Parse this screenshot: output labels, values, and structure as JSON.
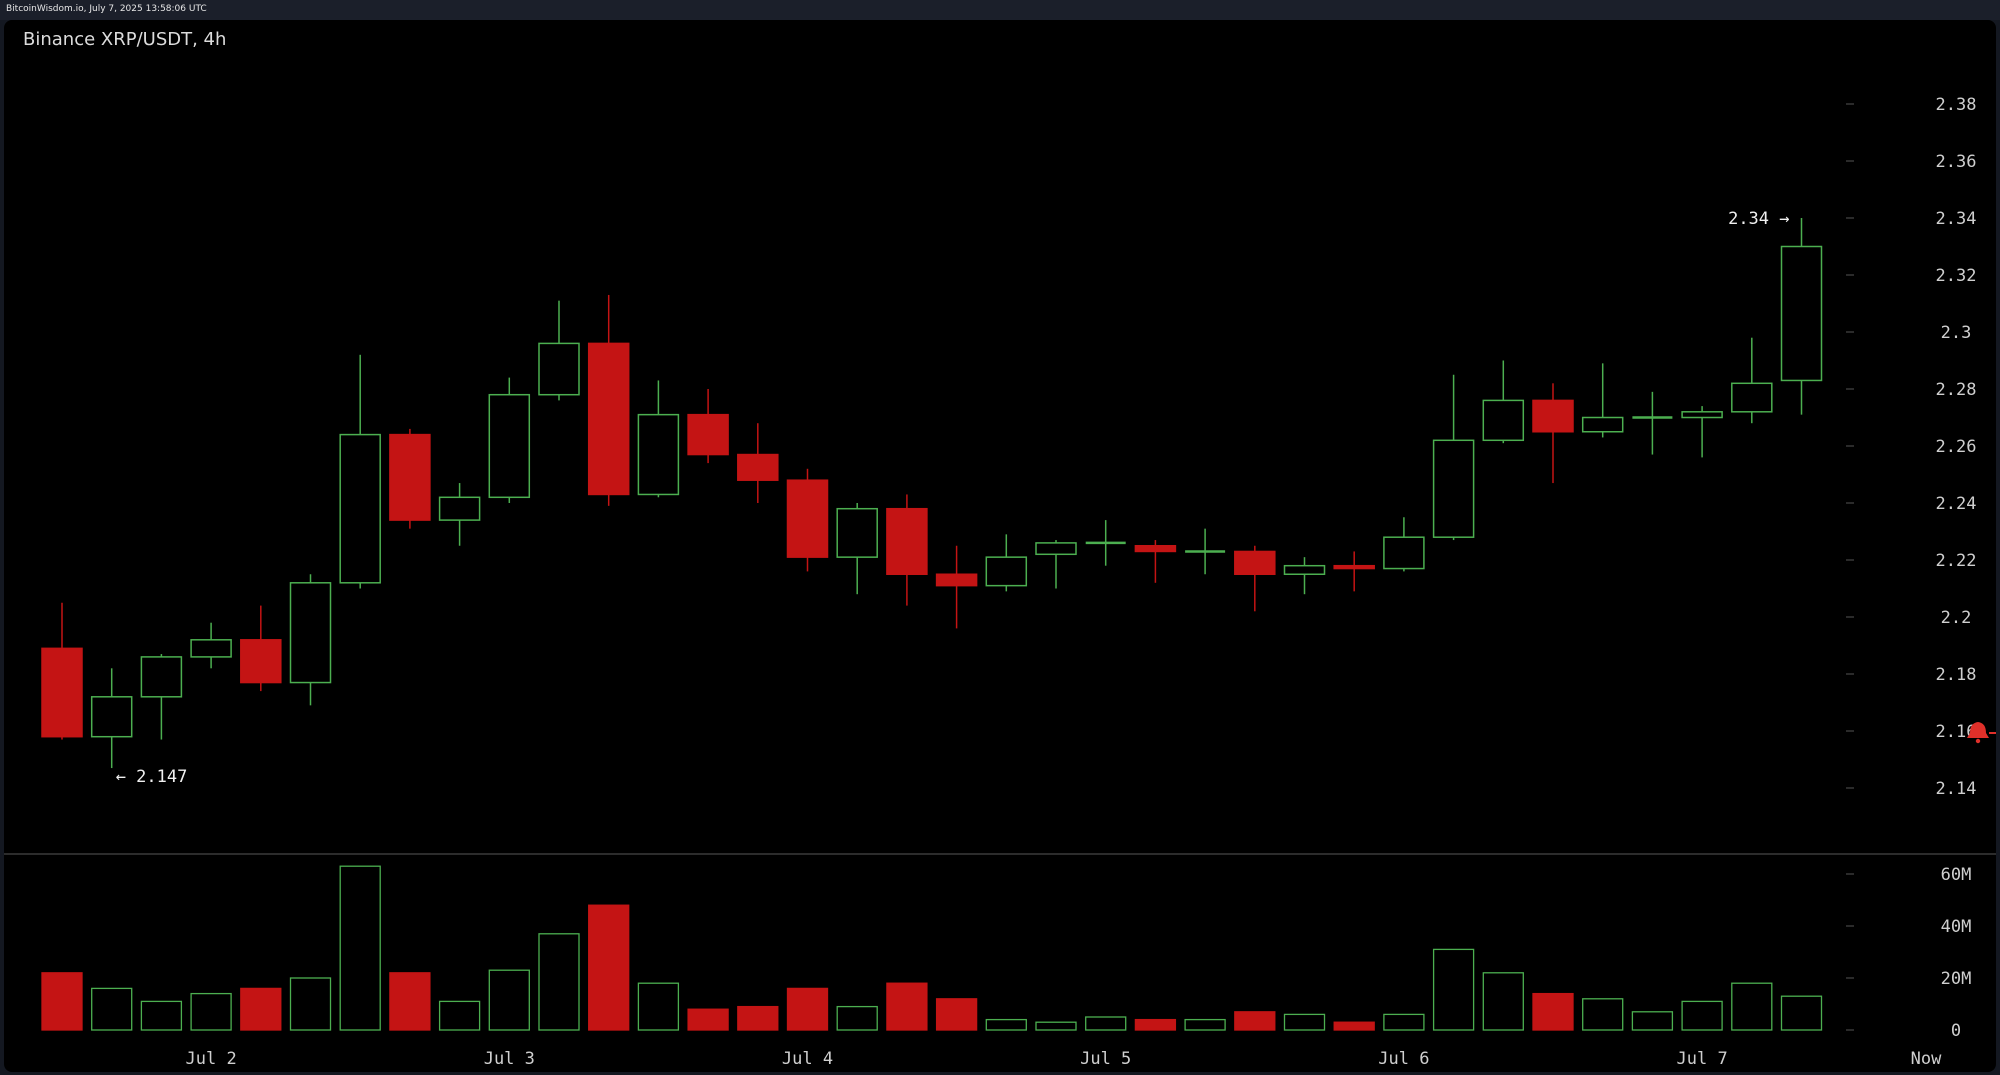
{
  "header": {
    "source_line": "BitcoinWisdom.io, July 7, 2025 13:58:06 UTC"
  },
  "colors": {
    "background": "#000000",
    "up": "#4caf50",
    "down": "#c41414",
    "text": "#cfcfcf"
  },
  "chart_data": {
    "type": "candlestick",
    "title": "Binance XRP/USDT, 4h",
    "price_axis": {
      "ticks": [
        2.14,
        2.16,
        2.18,
        2.2,
        2.22,
        2.24,
        2.26,
        2.28,
        2.3,
        2.32,
        2.34,
        2.36,
        2.38
      ],
      "tick_labels": [
        "2.14",
        "2.16",
        "2.18",
        "2.2",
        "2.22",
        "2.24",
        "2.26",
        "2.28",
        "2.3",
        "2.32",
        "2.34",
        "2.36",
        "2.38"
      ]
    },
    "volume_axis": {
      "ticks": [
        0,
        20000000,
        40000000,
        60000000
      ],
      "tick_labels": [
        "0",
        "20M",
        "40M",
        "60M"
      ]
    },
    "x_labels": [
      {
        "label": "Jul 2",
        "index": 3
      },
      {
        "label": "Jul 3",
        "index": 9
      },
      {
        "label": "Jul 4",
        "index": 15
      },
      {
        "label": "Jul 5",
        "index": 21
      },
      {
        "label": "Jul 6",
        "index": 27
      },
      {
        "label": "Jul 7",
        "index": 33
      },
      {
        "label": "Now",
        "index": 37
      }
    ],
    "annotations": {
      "high": {
        "text": "2.34 →",
        "value": 2.34,
        "index": 35
      },
      "low": {
        "text": "← 2.147",
        "value": 2.147,
        "index": 1
      }
    },
    "candles": [
      {
        "o": 2.189,
        "h": 2.205,
        "l": 2.157,
        "c": 2.158,
        "v": 22000000
      },
      {
        "o": 2.158,
        "h": 2.182,
        "l": 2.147,
        "c": 2.172,
        "v": 16000000
      },
      {
        "o": 2.172,
        "h": 2.187,
        "l": 2.157,
        "c": 2.186,
        "v": 11000000
      },
      {
        "o": 2.186,
        "h": 2.198,
        "l": 2.182,
        "c": 2.192,
        "v": 14000000
      },
      {
        "o": 2.192,
        "h": 2.204,
        "l": 2.174,
        "c": 2.177,
        "v": 16000000
      },
      {
        "o": 2.177,
        "h": 2.215,
        "l": 2.169,
        "c": 2.212,
        "v": 20000000
      },
      {
        "o": 2.212,
        "h": 2.292,
        "l": 2.21,
        "c": 2.264,
        "v": 63000000
      },
      {
        "o": 2.264,
        "h": 2.266,
        "l": 2.231,
        "c": 2.234,
        "v": 22000000
      },
      {
        "o": 2.234,
        "h": 2.247,
        "l": 2.225,
        "c": 2.242,
        "v": 11000000
      },
      {
        "o": 2.242,
        "h": 2.284,
        "l": 2.24,
        "c": 2.278,
        "v": 23000000
      },
      {
        "o": 2.278,
        "h": 2.311,
        "l": 2.276,
        "c": 2.296,
        "v": 37000000
      },
      {
        "o": 2.296,
        "h": 2.313,
        "l": 2.239,
        "c": 2.243,
        "v": 48000000
      },
      {
        "o": 2.243,
        "h": 2.283,
        "l": 2.242,
        "c": 2.271,
        "v": 18000000
      },
      {
        "o": 2.271,
        "h": 2.28,
        "l": 2.254,
        "c": 2.257,
        "v": 8000000
      },
      {
        "o": 2.257,
        "h": 2.268,
        "l": 2.24,
        "c": 2.248,
        "v": 9000000
      },
      {
        "o": 2.248,
        "h": 2.252,
        "l": 2.216,
        "c": 2.221,
        "v": 16000000
      },
      {
        "o": 2.221,
        "h": 2.24,
        "l": 2.208,
        "c": 2.238,
        "v": 9000000
      },
      {
        "o": 2.238,
        "h": 2.243,
        "l": 2.204,
        "c": 2.215,
        "v": 18000000
      },
      {
        "o": 2.215,
        "h": 2.225,
        "l": 2.196,
        "c": 2.211,
        "v": 12000000
      },
      {
        "o": 2.211,
        "h": 2.229,
        "l": 2.209,
        "c": 2.221,
        "v": 4000000
      },
      {
        "o": 2.222,
        "h": 2.227,
        "l": 2.21,
        "c": 2.226,
        "v": 3000000
      },
      {
        "o": 2.226,
        "h": 2.234,
        "l": 2.218,
        "c": 2.226,
        "v": 5000000
      },
      {
        "o": 2.225,
        "h": 2.227,
        "l": 2.212,
        "c": 2.223,
        "v": 4000000
      },
      {
        "o": 2.223,
        "h": 2.231,
        "l": 2.215,
        "c": 2.223,
        "v": 4000000
      },
      {
        "o": 2.223,
        "h": 2.225,
        "l": 2.202,
        "c": 2.215,
        "v": 7000000
      },
      {
        "o": 2.215,
        "h": 2.221,
        "l": 2.208,
        "c": 2.218,
        "v": 6000000
      },
      {
        "o": 2.218,
        "h": 2.223,
        "l": 2.209,
        "c": 2.217,
        "v": 3000000
      },
      {
        "o": 2.217,
        "h": 2.235,
        "l": 2.216,
        "c": 2.228,
        "v": 6000000
      },
      {
        "o": 2.228,
        "h": 2.285,
        "l": 2.227,
        "c": 2.262,
        "v": 31000000
      },
      {
        "o": 2.262,
        "h": 2.29,
        "l": 2.261,
        "c": 2.276,
        "v": 22000000
      },
      {
        "o": 2.276,
        "h": 2.282,
        "l": 2.247,
        "c": 2.265,
        "v": 14000000
      },
      {
        "o": 2.265,
        "h": 2.289,
        "l": 2.263,
        "c": 2.27,
        "v": 12000000
      },
      {
        "o": 2.27,
        "h": 2.279,
        "l": 2.257,
        "c": 2.27,
        "v": 7000000
      },
      {
        "o": 2.27,
        "h": 2.274,
        "l": 2.256,
        "c": 2.272,
        "v": 11000000
      },
      {
        "o": 2.272,
        "h": 2.298,
        "l": 2.268,
        "c": 2.282,
        "v": 18000000
      },
      {
        "o": 2.283,
        "h": 2.34,
        "l": 2.271,
        "c": 2.33,
        "v": 13000000
      }
    ]
  }
}
